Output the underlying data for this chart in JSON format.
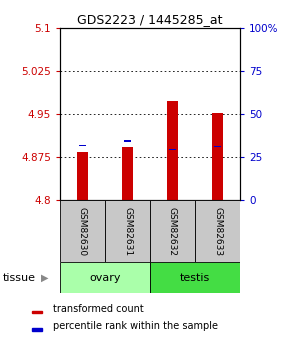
{
  "title": "GDS2223 / 1445285_at",
  "samples": [
    "GSM82630",
    "GSM82631",
    "GSM82632",
    "GSM82633"
  ],
  "tissue_groups": [
    {
      "label": "ovary",
      "color": "#aaffaa"
    },
    {
      "label": "testis",
      "color": "#44dd44"
    }
  ],
  "red_values": [
    4.883,
    4.893,
    4.972,
    4.952
  ],
  "blue_values": [
    4.895,
    4.903,
    4.888,
    4.893
  ],
  "ylim_left": [
    4.8,
    5.1
  ],
  "yticks_left": [
    4.8,
    4.875,
    4.95,
    5.025,
    5.1
  ],
  "yticks_right": [
    0,
    25,
    50,
    75,
    100
  ],
  "bar_bottom": 4.8,
  "bar_width": 0.25,
  "red_color": "#cc0000",
  "blue_color": "#0000cc",
  "background_color": "#ffffff",
  "legend_red": "transformed count",
  "legend_blue": "percentile rank within the sample",
  "tissue_label": "tissue",
  "left_tick_color": "#cc0000",
  "right_tick_color": "#0000cc",
  "sample_box_color": "#c8c8c8",
  "title_fontsize": 9,
  "tick_fontsize": 7.5,
  "sample_fontsize": 6.5,
  "tissue_fontsize": 8,
  "legend_fontsize": 7
}
